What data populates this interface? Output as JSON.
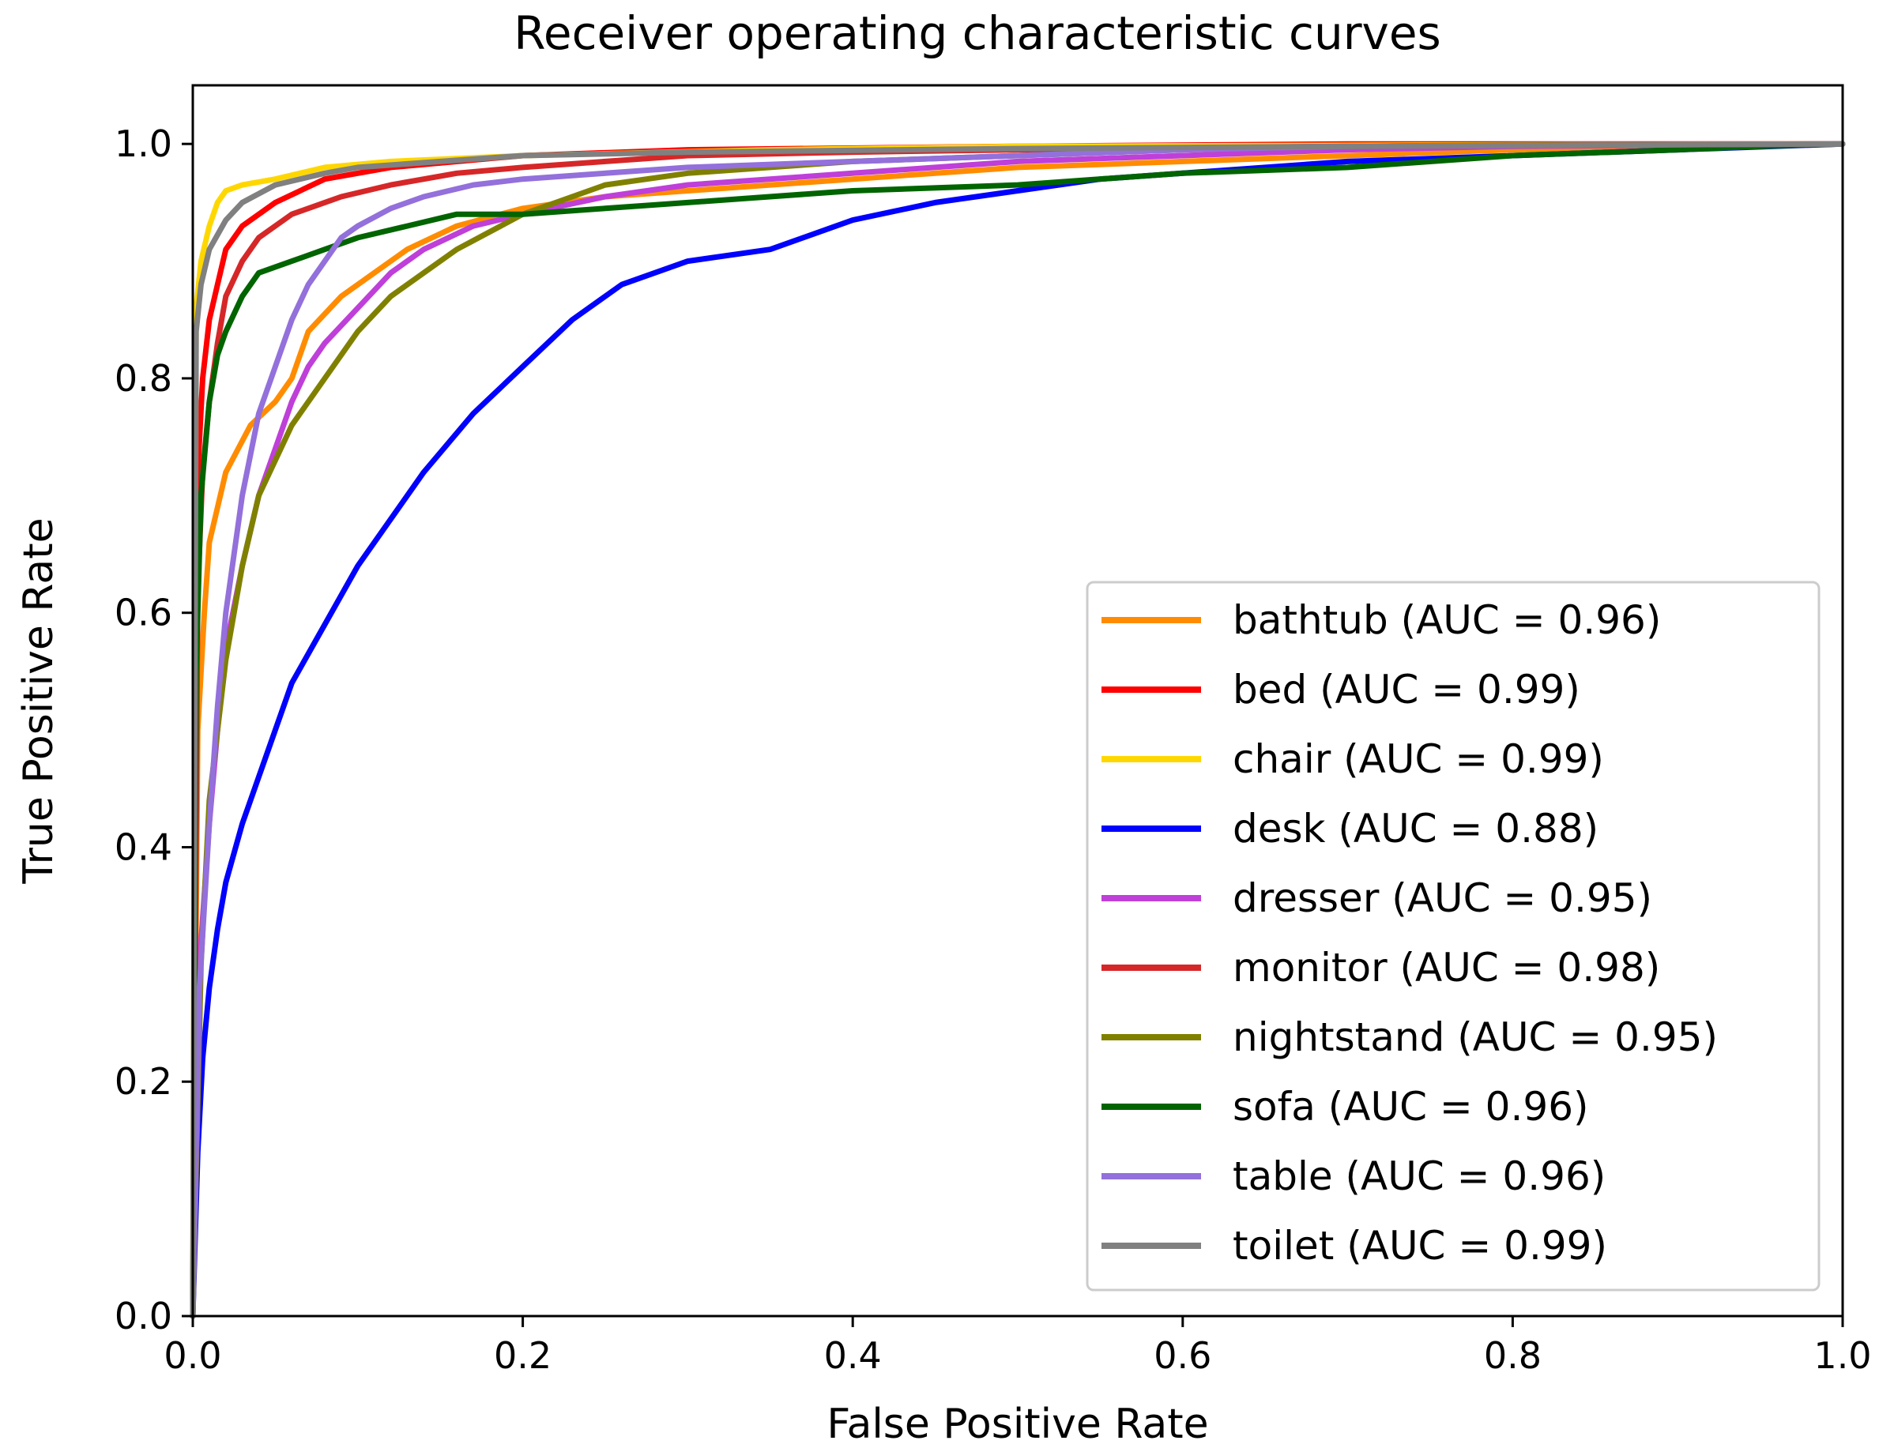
{
  "chart_data": {
    "type": "line",
    "title": "Receiver operating characteristic curves",
    "xlabel": "False Positive Rate",
    "ylabel": "True Positive Rate",
    "xlim": [
      0.0,
      1.0
    ],
    "ylim": [
      0.0,
      1.05
    ],
    "xticks": [
      0.0,
      0.2,
      0.4,
      0.6,
      0.8,
      1.0
    ],
    "xtick_labels": [
      "0.0",
      "0.2",
      "0.4",
      "0.6",
      "0.8",
      "1.0"
    ],
    "yticks": [
      0.0,
      0.2,
      0.4,
      0.6,
      0.8,
      1.0
    ],
    "ytick_labels": [
      "0.0",
      "0.2",
      "0.4",
      "0.6",
      "0.8",
      "1.0"
    ],
    "grid": false,
    "legend_position": "lower-right",
    "series": [
      {
        "name": "bathtub",
        "label": "bathtub (AUC = 0.96)",
        "color": "#ff8c00",
        "x": [
          0,
          0.003,
          0.007,
          0.01,
          0.02,
          0.035,
          0.05,
          0.06,
          0.07,
          0.09,
          0.11,
          0.13,
          0.16,
          0.2,
          0.25,
          0.3,
          0.4,
          0.5,
          0.6,
          0.7,
          0.8,
          0.9,
          1.0
        ],
        "y": [
          0,
          0.5,
          0.6,
          0.66,
          0.72,
          0.76,
          0.78,
          0.8,
          0.84,
          0.87,
          0.89,
          0.91,
          0.93,
          0.945,
          0.955,
          0.96,
          0.97,
          0.98,
          0.985,
          0.99,
          0.995,
          0.998,
          1.0
        ]
      },
      {
        "name": "bed",
        "label": "bed (AUC = 0.99)",
        "color": "#ff0000",
        "x": [
          0,
          0.003,
          0.006,
          0.01,
          0.015,
          0.02,
          0.03,
          0.05,
          0.08,
          0.12,
          0.2,
          0.3,
          0.5,
          0.7,
          1.0
        ],
        "y": [
          0,
          0.72,
          0.8,
          0.85,
          0.88,
          0.91,
          0.93,
          0.95,
          0.97,
          0.98,
          0.99,
          0.995,
          0.998,
          1.0,
          1.0
        ]
      },
      {
        "name": "chair",
        "label": "chair (AUC = 0.99)",
        "color": "#ffd700",
        "x": [
          0,
          0.002,
          0.005,
          0.01,
          0.015,
          0.02,
          0.03,
          0.05,
          0.08,
          0.12,
          0.2,
          0.35,
          0.5,
          1.0
        ],
        "y": [
          0,
          0.86,
          0.9,
          0.93,
          0.95,
          0.96,
          0.965,
          0.97,
          0.98,
          0.985,
          0.99,
          0.995,
          0.998,
          1.0
        ]
      },
      {
        "name": "desk",
        "label": "desk (AUC = 0.88)",
        "color": "#0000ff",
        "x": [
          0,
          0.003,
          0.006,
          0.01,
          0.015,
          0.02,
          0.03,
          0.04,
          0.05,
          0.06,
          0.08,
          0.1,
          0.12,
          0.14,
          0.17,
          0.2,
          0.23,
          0.26,
          0.3,
          0.35,
          0.4,
          0.45,
          0.5,
          0.55,
          0.6,
          0.7,
          0.8,
          0.9,
          1.0
        ],
        "y": [
          0,
          0.14,
          0.22,
          0.28,
          0.33,
          0.37,
          0.42,
          0.46,
          0.5,
          0.54,
          0.59,
          0.64,
          0.68,
          0.72,
          0.77,
          0.81,
          0.85,
          0.88,
          0.9,
          0.91,
          0.935,
          0.95,
          0.96,
          0.97,
          0.975,
          0.985,
          0.99,
          0.995,
          1.0
        ]
      },
      {
        "name": "dresser",
        "label": "dresser (AUC = 0.95)",
        "color": "#bf3fd9",
        "x": [
          0,
          0.004,
          0.01,
          0.015,
          0.02,
          0.03,
          0.04,
          0.05,
          0.06,
          0.07,
          0.08,
          0.1,
          0.12,
          0.14,
          0.17,
          0.2,
          0.25,
          0.3,
          0.4,
          0.5,
          0.6,
          0.7,
          0.8,
          0.9,
          1.0
        ],
        "y": [
          0,
          0.3,
          0.42,
          0.5,
          0.57,
          0.64,
          0.7,
          0.74,
          0.78,
          0.81,
          0.83,
          0.86,
          0.89,
          0.91,
          0.93,
          0.94,
          0.955,
          0.965,
          0.975,
          0.985,
          0.99,
          0.995,
          0.998,
          0.999,
          1.0
        ]
      },
      {
        "name": "monitor",
        "label": "monitor (AUC = 0.98)",
        "color": "#d62728",
        "x": [
          0,
          0.003,
          0.006,
          0.01,
          0.015,
          0.02,
          0.03,
          0.04,
          0.06,
          0.09,
          0.12,
          0.16,
          0.2,
          0.25,
          0.3,
          0.4,
          0.5,
          0.7,
          1.0
        ],
        "y": [
          0,
          0.62,
          0.72,
          0.78,
          0.83,
          0.87,
          0.9,
          0.92,
          0.94,
          0.955,
          0.965,
          0.975,
          0.98,
          0.985,
          0.99,
          0.993,
          0.995,
          0.998,
          1.0
        ]
      },
      {
        "name": "nightstand",
        "label": "nightstand (AUC = 0.95)",
        "color": "#808000",
        "x": [
          0,
          0.005,
          0.01,
          0.02,
          0.03,
          0.04,
          0.05,
          0.06,
          0.08,
          0.1,
          0.12,
          0.14,
          0.16,
          0.18,
          0.2,
          0.22,
          0.25,
          0.3,
          0.4,
          0.5,
          0.6,
          0.7,
          0.8,
          1.0
        ],
        "y": [
          0,
          0.3,
          0.44,
          0.56,
          0.64,
          0.7,
          0.73,
          0.76,
          0.8,
          0.84,
          0.87,
          0.89,
          0.91,
          0.925,
          0.94,
          0.95,
          0.965,
          0.975,
          0.985,
          0.99,
          0.995,
          0.998,
          0.999,
          1.0
        ]
      },
      {
        "name": "sofa",
        "label": "sofa (AUC = 0.96)",
        "color": "#006400",
        "x": [
          0,
          0.002,
          0.005,
          0.01,
          0.015,
          0.02,
          0.03,
          0.04,
          0.06,
          0.08,
          0.1,
          0.13,
          0.16,
          0.2,
          0.25,
          0.3,
          0.4,
          0.5,
          0.6,
          0.7,
          0.8,
          0.9,
          0.95,
          1.0
        ],
        "y": [
          0,
          0.55,
          0.7,
          0.78,
          0.82,
          0.84,
          0.87,
          0.89,
          0.9,
          0.91,
          0.92,
          0.93,
          0.94,
          0.94,
          0.945,
          0.95,
          0.96,
          0.965,
          0.975,
          0.98,
          0.99,
          0.995,
          0.998,
          1.0
        ]
      },
      {
        "name": "table",
        "label": "table (AUC = 0.96)",
        "color": "#9370db",
        "x": [
          0,
          0.004,
          0.01,
          0.015,
          0.02,
          0.03,
          0.04,
          0.05,
          0.06,
          0.07,
          0.08,
          0.09,
          0.1,
          0.12,
          0.14,
          0.17,
          0.2,
          0.25,
          0.3,
          0.4,
          0.5,
          0.6,
          0.7,
          1.0
        ],
        "y": [
          0,
          0.28,
          0.42,
          0.52,
          0.6,
          0.7,
          0.77,
          0.81,
          0.85,
          0.88,
          0.9,
          0.92,
          0.93,
          0.945,
          0.955,
          0.965,
          0.97,
          0.975,
          0.98,
          0.985,
          0.99,
          0.995,
          0.998,
          1.0
        ]
      },
      {
        "name": "toilet",
        "label": "toilet (AUC = 0.99)",
        "color": "#808080",
        "x": [
          0,
          0.002,
          0.005,
          0.01,
          0.02,
          0.03,
          0.05,
          0.08,
          0.1,
          0.15,
          0.2,
          0.3,
          0.5,
          0.7,
          1.0
        ],
        "y": [
          0,
          0.84,
          0.88,
          0.91,
          0.935,
          0.95,
          0.965,
          0.975,
          0.98,
          0.985,
          0.99,
          0.993,
          0.996,
          0.998,
          1.0
        ]
      }
    ]
  }
}
